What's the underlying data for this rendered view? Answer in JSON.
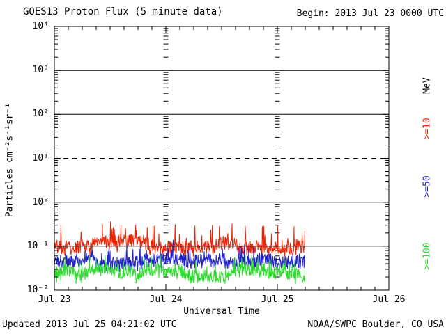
{
  "header": {
    "title": "GOES13 Proton Flux (5 minute data)",
    "begin": "Begin: 2013 Jul 23 0000 UTC"
  },
  "footer": {
    "updated": "Updated 2013 Jul 25 04:21:02 UTC",
    "source": "NOAA/SWPC Boulder, CO USA"
  },
  "chart_data": {
    "type": "line",
    "y_scale": "log",
    "title": "GOES13 Proton Flux (5 minute data)",
    "begin_label": "Begin: 2013 Jul 23 0000 UTC",
    "xlabel": "Universal Time",
    "ylabel": "Particles cm⁻²s⁻¹sr⁻¹",
    "unit_label": "MeV",
    "x_tick_labels": [
      "Jul 23",
      "Jul 24",
      "Jul 25",
      "Jul 26"
    ],
    "x_range_days": 3,
    "x_minor_tick_hours": 3,
    "y_tick_labels": [
      "10⁴",
      "10³",
      "10²",
      "10¹",
      "10⁰",
      "10⁻¹",
      "10⁻²"
    ],
    "y_log_range": [
      -2,
      4
    ],
    "grid_solid_decades": [
      3,
      2,
      0,
      -1
    ],
    "grid_dashed_decades": [
      1
    ],
    "vertical_minor_tick_ladders_at_days": [
      1,
      2
    ],
    "cadence_minutes": 5,
    "data_end_day_fraction": 2.25,
    "series": [
      {
        "label": ">=10",
        "unit": "MeV",
        "color": "#ee2200",
        "mean_flux": 0.11,
        "flux_min": 0.058,
        "flux_max": 0.38
      },
      {
        "label": ">=50",
        "unit": "MeV",
        "color": "#2222cc",
        "mean_flux": 0.05,
        "flux_min": 0.026,
        "flux_max": 0.14
      },
      {
        "label": ">=100",
        "unit": "MeV",
        "color": "#2edc2e",
        "mean_flux": 0.025,
        "flux_min": 0.014,
        "flux_max": 0.062
      }
    ]
  }
}
